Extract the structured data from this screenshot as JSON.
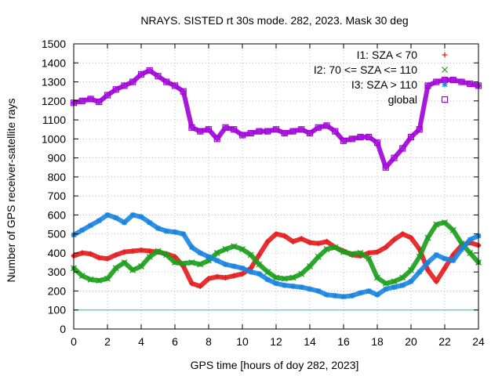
{
  "chart_data": {
    "type": "scatter",
    "title": "NRAYS. SISTED rt 30s mode. 282, 2023. Mask 30 deg",
    "xlabel": "GPS time [hours of doy 282, 2023]",
    "ylabel": "Number of GPS receiver-satellite rays",
    "xlim": [
      0,
      24
    ],
    "ylim": [
      0,
      1500
    ],
    "xticks": [
      0,
      2,
      4,
      6,
      8,
      10,
      12,
      14,
      16,
      18,
      20,
      22,
      24
    ],
    "yticks": [
      0,
      100,
      200,
      300,
      400,
      500,
      600,
      700,
      800,
      900,
      1000,
      1100,
      1200,
      1300,
      1400,
      1500
    ],
    "legend_position": "top-right",
    "reference_line": {
      "y": 100,
      "color": "#00c8d2"
    },
    "series": [
      {
        "name": "I1: SZA < 70",
        "marker": "+",
        "color": "#e41a1c",
        "x": [
          0,
          0.5,
          1,
          1.5,
          2,
          2.5,
          3,
          3.5,
          4,
          4.5,
          5,
          5.5,
          6,
          6.5,
          7,
          7.5,
          8,
          8.5,
          9,
          9.5,
          10,
          10.5,
          11,
          11.5,
          12,
          12.5,
          13,
          13.5,
          14,
          14.5,
          15,
          15.5,
          16,
          16.5,
          17,
          17.5,
          18,
          18.5,
          19,
          19.5,
          20,
          20.5,
          21,
          21.5,
          22,
          22.5,
          23,
          23.5,
          24
        ],
        "values": [
          385,
          400,
          395,
          375,
          370,
          390,
          405,
          410,
          415,
          410,
          405,
          395,
          380,
          330,
          240,
          225,
          265,
          275,
          270,
          280,
          290,
          320,
          390,
          460,
          500,
          490,
          460,
          475,
          455,
          450,
          460,
          430,
          410,
          390,
          385,
          400,
          405,
          430,
          470,
          500,
          480,
          420,
          310,
          250,
          320,
          390,
          440,
          455,
          440
        ]
      },
      {
        "name": "I2: 70 <= SZA <= 110",
        "marker": "x",
        "color": "#1a9e1a",
        "x": [
          0,
          0.5,
          1,
          1.5,
          2,
          2.5,
          3,
          3.5,
          4,
          4.5,
          5,
          5.5,
          6,
          6.5,
          7,
          7.5,
          8,
          8.5,
          9,
          9.5,
          10,
          10.5,
          11,
          11.5,
          12,
          12.5,
          13,
          13.5,
          14,
          14.5,
          15,
          15.5,
          16,
          16.5,
          17,
          17.5,
          18,
          18.5,
          19,
          19.5,
          20,
          20.5,
          21,
          21.5,
          22,
          22.5,
          23,
          23.5,
          24
        ],
        "values": [
          320,
          280,
          260,
          255,
          265,
          320,
          350,
          310,
          330,
          380,
          410,
          390,
          350,
          345,
          350,
          340,
          360,
          400,
          420,
          435,
          420,
          390,
          340,
          300,
          270,
          265,
          270,
          290,
          330,
          380,
          420,
          430,
          405,
          395,
          400,
          370,
          270,
          240,
          250,
          270,
          310,
          380,
          480,
          550,
          560,
          520,
          450,
          400,
          350
        ]
      },
      {
        "name": "I3: SZA > 110",
        "marker": "*",
        "color": "#1a84e0",
        "x": [
          0,
          0.5,
          1,
          1.5,
          2,
          2.5,
          3,
          3.5,
          4,
          4.5,
          5,
          5.5,
          6,
          6.5,
          7,
          7.5,
          8,
          8.5,
          9,
          9.5,
          10,
          10.5,
          11,
          11.5,
          12,
          12.5,
          13,
          13.5,
          14,
          14.5,
          15,
          15.5,
          16,
          16.5,
          17,
          17.5,
          18,
          18.5,
          19,
          19.5,
          20,
          20.5,
          21,
          21.5,
          22,
          22.5,
          23,
          23.5,
          24
        ],
        "values": [
          495,
          520,
          545,
          570,
          600,
          585,
          560,
          600,
          590,
          560,
          530,
          515,
          510,
          500,
          430,
          400,
          380,
          360,
          340,
          330,
          320,
          300,
          290,
          260,
          240,
          230,
          225,
          220,
          210,
          200,
          180,
          175,
          170,
          175,
          190,
          200,
          180,
          210,
          220,
          230,
          250,
          300,
          350,
          390,
          370,
          360,
          420,
          470,
          490
        ]
      },
      {
        "name": "global",
        "marker": "square",
        "color": "#a000d8",
        "x": [
          0,
          0.5,
          1,
          1.5,
          2,
          2.5,
          3,
          3.5,
          4,
          4.5,
          5,
          5.5,
          6,
          6.5,
          7,
          7.5,
          8,
          8.5,
          9,
          9.5,
          10,
          10.5,
          11,
          11.5,
          12,
          12.5,
          13,
          13.5,
          14,
          14.5,
          15,
          15.5,
          16,
          16.5,
          17,
          17.5,
          18,
          18.5,
          19,
          19.5,
          20,
          20.5,
          21,
          21.5,
          22,
          22.5,
          23,
          23.5,
          24
        ],
        "values": [
          1190,
          1200,
          1210,
          1195,
          1230,
          1260,
          1280,
          1300,
          1340,
          1360,
          1330,
          1300,
          1280,
          1250,
          1060,
          1040,
          1050,
          1000,
          1060,
          1050,
          1020,
          1030,
          1040,
          1040,
          1050,
          1030,
          1040,
          1050,
          1030,
          1060,
          1070,
          1040,
          990,
          1000,
          1010,
          1010,
          980,
          850,
          900,
          950,
          1010,
          1050,
          1280,
          1300,
          1310,
          1310,
          1300,
          1290,
          1280
        ]
      }
    ]
  }
}
